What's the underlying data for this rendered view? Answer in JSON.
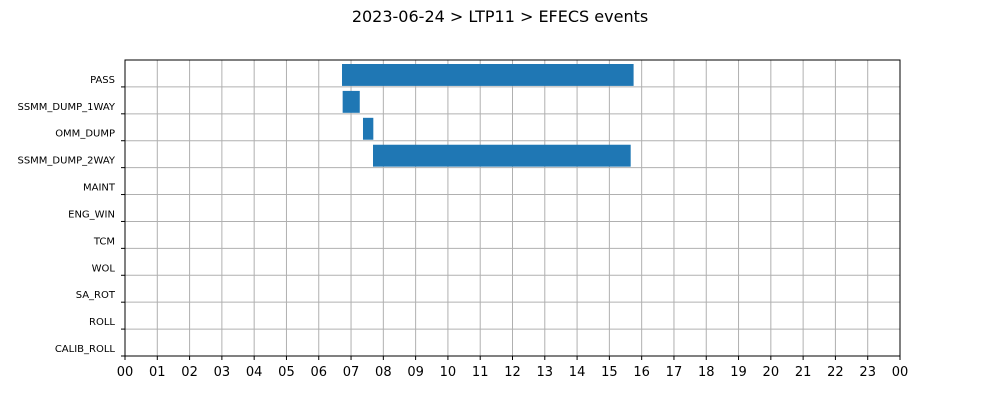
{
  "chart_data": {
    "type": "bar",
    "orientation": "horizontal-timeline",
    "title": "2023-06-24 > LTP11 > EFECS events",
    "xlabel": "",
    "ylabel": "",
    "xlim": [
      0,
      24
    ],
    "x_tick_labels": [
      "00",
      "01",
      "02",
      "03",
      "04",
      "05",
      "06",
      "07",
      "08",
      "09",
      "10",
      "11",
      "12",
      "13",
      "14",
      "15",
      "16",
      "17",
      "18",
      "19",
      "20",
      "21",
      "22",
      "23",
      "00"
    ],
    "categories": [
      "PASS",
      "SSMM_DUMP_1WAY",
      "OMM_DUMP",
      "SSMM_DUMP_2WAY",
      "MAINT",
      "ENG_WIN",
      "TCM",
      "WOL",
      "SA_ROT",
      "ROLL",
      "CALIB_ROLL"
    ],
    "grid": true,
    "bar_color": "#1f77b4",
    "grid_color": "#b0b0b0",
    "intervals": [
      {
        "category": "PASS",
        "start": 6.72,
        "end": 15.75
      },
      {
        "category": "SSMM_DUMP_1WAY",
        "start": 6.74,
        "end": 7.27
      },
      {
        "category": "OMM_DUMP",
        "start": 7.37,
        "end": 7.69
      },
      {
        "category": "SSMM_DUMP_2WAY",
        "start": 7.68,
        "end": 15.66
      }
    ]
  }
}
